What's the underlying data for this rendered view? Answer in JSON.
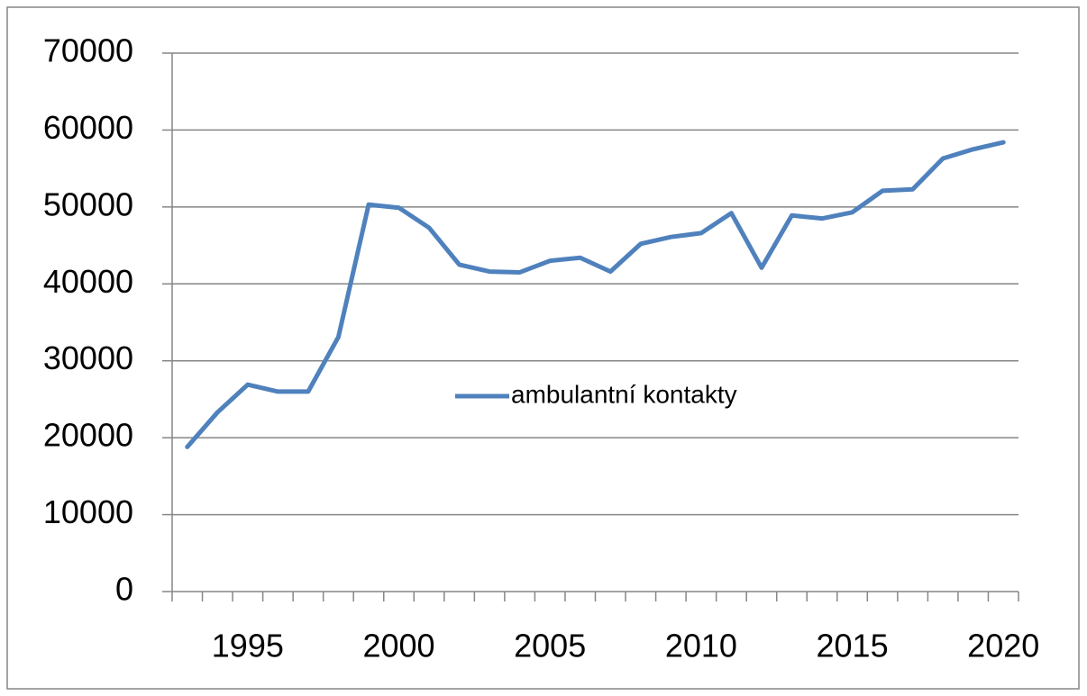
{
  "chart_data": {
    "type": "line",
    "categories": [
      null,
      null,
      "1995",
      null,
      null,
      null,
      null,
      "2000",
      null,
      null,
      null,
      null,
      "2005",
      null,
      null,
      null,
      null,
      "2010",
      null,
      null,
      null,
      null,
      "2015",
      null,
      null,
      null,
      null,
      "2020"
    ],
    "series": [
      {
        "name": "ambulantní kontakty",
        "color": "#4f81bd",
        "values": [
          18800,
          23300,
          26900,
          26000,
          26000,
          33100,
          50300,
          49900,
          47300,
          42500,
          41600,
          41500,
          43000,
          43400,
          41600,
          45200,
          46100,
          46600,
          49200,
          42100,
          48900,
          48500,
          49300,
          52100,
          52300,
          56300,
          57500,
          58400
        ]
      }
    ],
    "ylim": [
      0,
      70000
    ],
    "yticks": [
      0,
      10000,
      20000,
      30000,
      40000,
      50000,
      60000,
      70000
    ],
    "grid": true,
    "legend": "center"
  }
}
